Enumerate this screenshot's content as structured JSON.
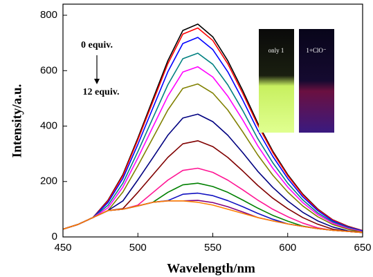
{
  "chart_data": {
    "type": "line",
    "x": [
      450,
      460,
      470,
      480,
      490,
      500,
      510,
      520,
      530,
      540,
      550,
      560,
      570,
      580,
      590,
      600,
      610,
      620,
      630,
      640,
      650
    ],
    "series": [
      {
        "color": "#000000",
        "values": [
          28,
          45,
          70,
          132,
          225,
          357,
          497,
          636,
          745,
          768,
          722,
          636,
          528,
          411,
          310,
          225,
          155,
          101,
          62,
          39,
          23
        ]
      },
      {
        "color": "#ff0000",
        "values": [
          28,
          45,
          70,
          130,
          221,
          351,
          488,
          625,
          732,
          754,
          709,
          625,
          518,
          404,
          305,
          221,
          152,
          99,
          61,
          38,
          23
        ]
      },
      {
        "color": "#0000ff",
        "values": [
          28,
          45,
          70,
          124,
          211,
          334,
          465,
          596,
          698,
          720,
          676,
          596,
          494,
          385,
          291,
          211,
          145,
          95,
          58,
          36,
          22
        ]
      },
      {
        "color": "#008080",
        "values": [
          28,
          45,
          70,
          114,
          194,
          308,
          429,
          549,
          643,
          663,
          623,
          549,
          456,
          355,
          268,
          194,
          134,
          87,
          54,
          34,
          20
        ]
      },
      {
        "color": "#ff00ff",
        "values": [
          28,
          45,
          70,
          105,
          180,
          285,
          397,
          508,
          595,
          614,
          577,
          508,
          422,
          329,
          248,
          180,
          124,
          81,
          50,
          31,
          19
        ]
      },
      {
        "color": "#808000",
        "values": [
          28,
          45,
          70,
          95,
          162,
          257,
          357,
          458,
          536,
          552,
          519,
          458,
          379,
          296,
          223,
          162,
          112,
          73,
          45,
          28,
          17
        ]
      },
      {
        "color": "#000080",
        "values": [
          28,
          45,
          70,
          95,
          130,
          206,
          286,
          367,
          429,
          443,
          416,
          367,
          304,
          237,
          179,
          130,
          89,
          58,
          36,
          22,
          16
        ]
      },
      {
        "color": "#800000",
        "values": [
          28,
          45,
          70,
          95,
          102,
          161,
          224,
          287,
          336,
          347,
          326,
          287,
          238,
          186,
          140,
          102,
          70,
          46,
          28,
          20,
          16
        ]
      },
      {
        "color": "#ff1493",
        "values": [
          28,
          45,
          70,
          95,
          100,
          115,
          160,
          205,
          240,
          248,
          233,
          205,
          170,
          133,
          100,
          73,
          50,
          33,
          24,
          20,
          16
        ]
      },
      {
        "color": "#008000",
        "values": [
          28,
          45,
          70,
          95,
          100,
          112,
          125,
          161,
          188,
          194,
          182,
          161,
          133,
          104,
          78,
          57,
          39,
          30,
          24,
          20,
          16
        ]
      },
      {
        "color": "#1010c0",
        "values": [
          28,
          45,
          70,
          95,
          100,
          112,
          125,
          131,
          154,
          158,
          149,
          131,
          109,
          85,
          64,
          47,
          38,
          30,
          24,
          20,
          16
        ]
      },
      {
        "color": "#800080",
        "values": [
          28,
          45,
          70,
          95,
          100,
          112,
          125,
          130,
          130,
          132,
          124,
          109,
          90,
          70,
          58,
          47,
          38,
          30,
          24,
          20,
          16
        ]
      },
      {
        "color": "#ff8000",
        "values": [
          28,
          45,
          70,
          95,
          100,
          112,
          125,
          130,
          130,
          125,
          115,
          100,
          85,
          70,
          58,
          47,
          38,
          30,
          24,
          20,
          16
        ]
      }
    ],
    "xlim": [
      450,
      650
    ],
    "ylim": [
      0,
      840
    ],
    "xticks": [
      450,
      500,
      550,
      600,
      650
    ],
    "yticks": [
      0,
      200,
      400,
      600,
      800
    ],
    "xlabel": "Wavelength/nm",
    "ylabel": "Intensity/a.u.",
    "annotations": [
      "0 equiv.",
      "12 equiv."
    ],
    "inset_labels": [
      "only 1",
      "1+ClO⁻"
    ]
  }
}
